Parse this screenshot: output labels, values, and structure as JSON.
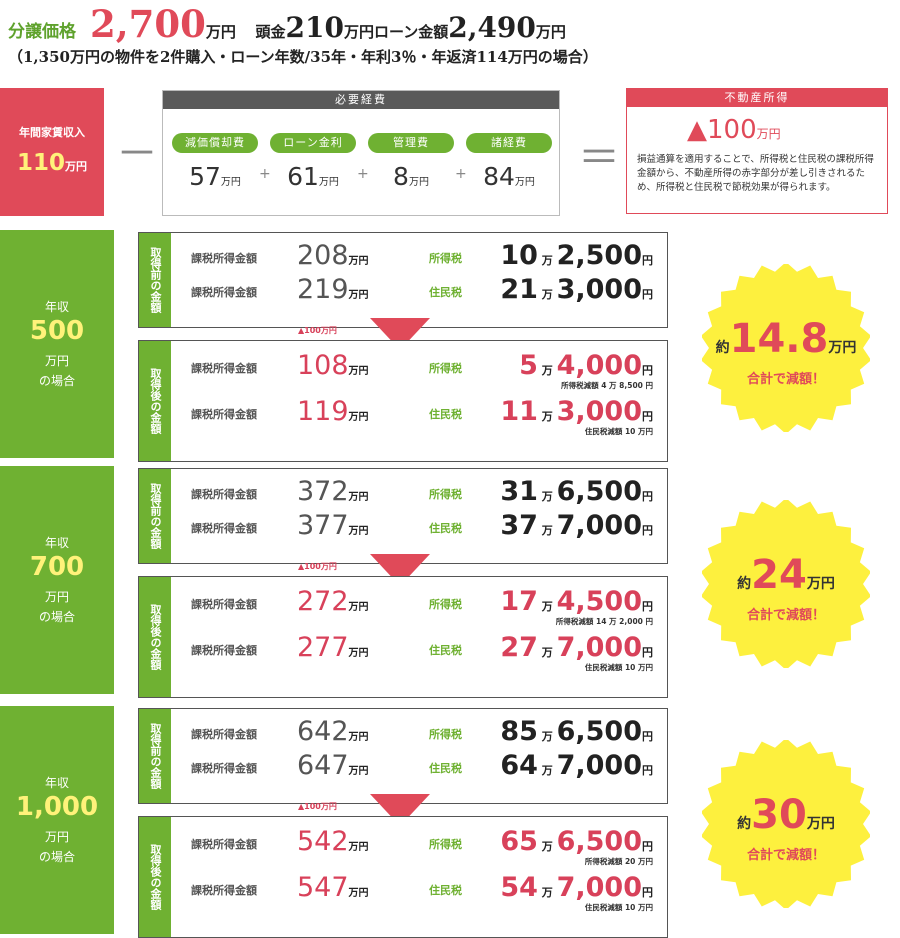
{
  "header": {
    "label": "分譲価格",
    "price": "2,700",
    "price_unit": "万円",
    "down_label": "頭金",
    "down_value": "210",
    "down_unit": "万円",
    "loan_label": "ローン金額",
    "loan_value": "2,490",
    "loan_unit": "万円",
    "note": "（1,350万円の物件を2件購入・ローン年数/35年・年利3％・年返済114万円の場合）"
  },
  "formula": {
    "income_label": "年間家賃収入",
    "income_value": "110",
    "income_unit": "万円",
    "minus": "－",
    "equals": "＝",
    "expenses_title": "必要経費",
    "expenses": [
      {
        "label": "減価償却費",
        "value": "57",
        "unit": "万円"
      },
      {
        "label": "ローン金利",
        "value": "61",
        "unit": "万円"
      },
      {
        "label": "管理費",
        "value": "8",
        "unit": "万円"
      },
      {
        "label": "諸経費",
        "value": "84",
        "unit": "万円"
      }
    ],
    "plus": "+",
    "result_title": "不動産所得",
    "result_value": "▲100",
    "result_unit": "万円",
    "result_note": "損益通算を適用することで、所得税と住民税の課税所得金額から、不動産所得の赤字部分が差し引きされるため、所得税と住民税で節税効果が得られます。"
  },
  "sections": [
    {
      "l1": "年収",
      "l2": "500",
      "l3": "万円",
      "l4": "の場合",
      "before_tag": "取得前の金額",
      "after_tag": "取得後の金額",
      "reduction": "▲100万円",
      "before": [
        {
          "label": "課税所得金額",
          "amount": "208",
          "unit": "万円",
          "tax_label": "所得税",
          "man": "10",
          "rest": "2,500"
        },
        {
          "label": "課税所得金額",
          "amount": "219",
          "unit": "万円",
          "tax_label": "住民税",
          "man": "21",
          "rest": "3,000"
        }
      ],
      "after": [
        {
          "label": "課税所得金額",
          "amount": "108",
          "unit": "万円",
          "tax_label": "所得税",
          "man": "5",
          "rest": "4,000",
          "note": "所得税減額 4 万 8,500 円"
        },
        {
          "label": "課税所得金額",
          "amount": "119",
          "unit": "万円",
          "tax_label": "住民税",
          "man": "11",
          "rest": "3,000",
          "note": "住民税減額 10 万円"
        }
      ],
      "total_prefix": "約",
      "total_value": "14.8",
      "total_unit": "万円",
      "total_caption": "合計で減額！"
    },
    {
      "l1": "年収",
      "l2": "700",
      "l3": "万円",
      "l4": "の場合",
      "before_tag": "取得前の金額",
      "after_tag": "取得後の金額",
      "reduction": "▲100万円",
      "before": [
        {
          "label": "課税所得金額",
          "amount": "372",
          "unit": "万円",
          "tax_label": "所得税",
          "man": "31",
          "rest": "6,500"
        },
        {
          "label": "課税所得金額",
          "amount": "377",
          "unit": "万円",
          "tax_label": "住民税",
          "man": "37",
          "rest": "7,000"
        }
      ],
      "after": [
        {
          "label": "課税所得金額",
          "amount": "272",
          "unit": "万円",
          "tax_label": "所得税",
          "man": "17",
          "rest": "4,500",
          "note": "所得税減額 14 万 2,000 円"
        },
        {
          "label": "課税所得金額",
          "amount": "277",
          "unit": "万円",
          "tax_label": "住民税",
          "man": "27",
          "rest": "7,000",
          "note": "住民税減額 10 万円"
        }
      ],
      "total_prefix": "約",
      "total_value": "24",
      "total_unit": "万円",
      "total_caption": "合計で減額！"
    },
    {
      "l1": "年収",
      "l2": "1,000",
      "l3": "万円",
      "l4": "の場合",
      "before_tag": "取得前の金額",
      "after_tag": "取得後の金額",
      "reduction": "▲100万円",
      "before": [
        {
          "label": "課税所得金額",
          "amount": "642",
          "unit": "万円",
          "tax_label": "所得税",
          "man": "85",
          "rest": "6,500"
        },
        {
          "label": "課税所得金額",
          "amount": "647",
          "unit": "万円",
          "tax_label": "住民税",
          "man": "64",
          "rest": "7,000"
        }
      ],
      "after": [
        {
          "label": "課税所得金額",
          "amount": "542",
          "unit": "万円",
          "tax_label": "所得税",
          "man": "65",
          "rest": "6,500",
          "note": "所得税減額 20 万円"
        },
        {
          "label": "課税所得金額",
          "amount": "547",
          "unit": "万円",
          "tax_label": "住民税",
          "man": "54",
          "rest": "7,000",
          "note": "住民税減額 10 万円"
        }
      ],
      "total_prefix": "約",
      "total_value": "30",
      "total_unit": "万円",
      "total_caption": "合計で減額！"
    }
  ],
  "units": {
    "man": "万",
    "yen": "円"
  },
  "colors": {
    "green": "#6fb132",
    "red": "#e04a59",
    "yellow": "#fff27a",
    "burst": "#fdf03e"
  }
}
